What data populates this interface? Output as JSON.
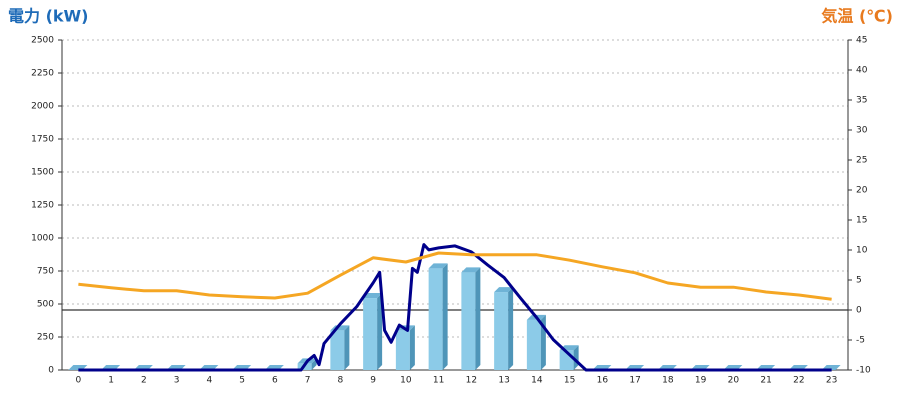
{
  "chart_data": {
    "type": "combo",
    "title": "電力 (kW)",
    "y2_title": "気温 (℃)",
    "categories": [
      "0",
      "1",
      "2",
      "3",
      "4",
      "5",
      "6",
      "7",
      "8",
      "9",
      "10",
      "11",
      "12",
      "13",
      "14",
      "15",
      "16",
      "17",
      "18",
      "19",
      "20",
      "21",
      "22",
      "23"
    ],
    "ylim": [
      0,
      2500
    ],
    "yticks": [
      0,
      250,
      500,
      750,
      1000,
      1250,
      1500,
      1750,
      2000,
      2250,
      2500
    ],
    "y2lim": [
      -10,
      45
    ],
    "y2ticks": [
      -10,
      -5,
      0,
      5,
      10,
      15,
      20,
      25,
      30,
      35,
      40,
      45
    ],
    "grid": true,
    "series": [
      {
        "type": "bar",
        "color": "#8ccbe8",
        "values": [
          0,
          0,
          0,
          0,
          0,
          0,
          0,
          50,
          300,
          545,
          300,
          770,
          740,
          590,
          380,
          150,
          0,
          0,
          0,
          0,
          0,
          0,
          0,
          0
        ]
      },
      {
        "type": "line",
        "color": "#00008b",
        "x": [
          0,
          6.8,
          7,
          7.2,
          7.35,
          7.5,
          8,
          8.5,
          9,
          9.2,
          9.35,
          9.55,
          9.8,
          10.05,
          10.2,
          10.35,
          10.55,
          10.7,
          11,
          11.5,
          12,
          12.5,
          13,
          13.5,
          14,
          14.5,
          15,
          15.5,
          23
        ],
        "values": [
          0,
          0,
          70,
          110,
          40,
          200,
          350,
          480,
          660,
          740,
          300,
          210,
          340,
          300,
          770,
          740,
          950,
          910,
          925,
          940,
          895,
          795,
          700,
          545,
          395,
          230,
          115,
          0,
          0
        ]
      },
      {
        "type": "line",
        "color": "#f5a623",
        "axis": "y2",
        "values": [
          4.3,
          3.7,
          3.2,
          3.2,
          2.5,
          2.2,
          2.0,
          2.8,
          5.8,
          8.7,
          8.0,
          9.5,
          9.2,
          9.2,
          9.2,
          8.3,
          7.2,
          6.2,
          4.5,
          3.8,
          3.8,
          3.0,
          2.5,
          1.8
        ]
      }
    ]
  }
}
